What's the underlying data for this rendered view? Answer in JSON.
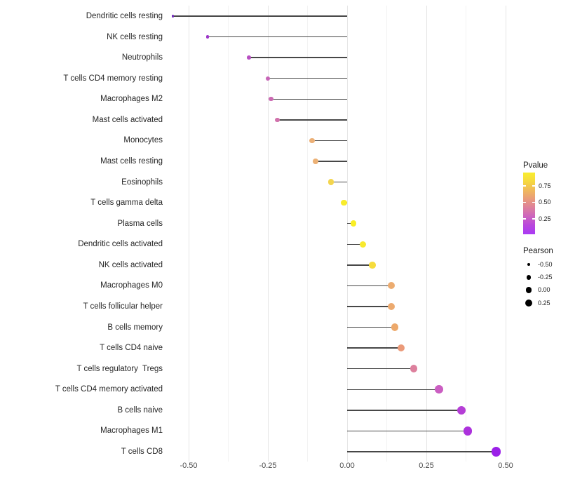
{
  "chart_data": {
    "type": "scatter",
    "subtype": "lollipop",
    "title": "",
    "xlabel": "",
    "ylabel": "",
    "x_ticks": [
      {
        "label": "-0.50",
        "value": -0.5
      },
      {
        "label": "-0.25",
        "value": -0.25
      },
      {
        "label": "0.00",
        "value": 0.0
      },
      {
        "label": "0.25",
        "value": 0.25
      },
      {
        "label": "0.50",
        "value": 0.5
      }
    ],
    "x_minor_gridlines": [
      -0.375,
      -0.125,
      0.125,
      0.375
    ],
    "xlim": [
      -0.585,
      0.53
    ],
    "grid": "vertical-only",
    "legend_position": "right",
    "points": [
      {
        "label": "Dendritic cells resting",
        "pearson": -0.55,
        "pvalue_approx": 0.05,
        "color": "#7129b8"
      },
      {
        "label": "NK cells resting",
        "pearson": -0.44,
        "pvalue_approx": 0.15,
        "color": "#9d36c9"
      },
      {
        "label": "Neutrophils",
        "pearson": -0.31,
        "pvalue_approx": 0.3,
        "color": "#b84fc2"
      },
      {
        "label": "T cells CD4 memory resting",
        "pearson": -0.25,
        "pvalue_approx": 0.38,
        "color": "#c765b7"
      },
      {
        "label": "Macrophages M2",
        "pearson": -0.24,
        "pvalue_approx": 0.4,
        "color": "#cb69b2"
      },
      {
        "label": "Mast cells activated",
        "pearson": -0.22,
        "pvalue_approx": 0.44,
        "color": "#d172ac"
      },
      {
        "label": "Monocytes",
        "pearson": -0.11,
        "pvalue_approx": 0.65,
        "color": "#ecb077"
      },
      {
        "label": "Mast cells resting",
        "pearson": -0.1,
        "pvalue_approx": 0.66,
        "color": "#ecb175"
      },
      {
        "label": "Eosinophils",
        "pearson": -0.05,
        "pvalue_approx": 0.8,
        "color": "#f3d54e"
      },
      {
        "label": "T cells gamma delta",
        "pearson": -0.01,
        "pvalue_approx": 0.9,
        "color": "#f8ec2b"
      },
      {
        "label": "Plasma cells",
        "pearson": 0.02,
        "pvalue_approx": 0.92,
        "color": "#f9ee24"
      },
      {
        "label": "Dendritic cells activated",
        "pearson": 0.05,
        "pvalue_approx": 0.88,
        "color": "#f8e92e"
      },
      {
        "label": "NK cells activated",
        "pearson": 0.08,
        "pvalue_approx": 0.82,
        "color": "#f6dc3c"
      },
      {
        "label": "Macrophages M0",
        "pearson": 0.14,
        "pvalue_approx": 0.66,
        "color": "#ecac70"
      },
      {
        "label": "T cells follicular helper",
        "pearson": 0.14,
        "pvalue_approx": 0.65,
        "color": "#ecaa6f"
      },
      {
        "label": "B cells memory",
        "pearson": 0.15,
        "pvalue_approx": 0.64,
        "color": "#eda96b"
      },
      {
        "label": "T cells CD4 naive",
        "pearson": 0.17,
        "pvalue_approx": 0.58,
        "color": "#eb9a79"
      },
      {
        "label": "T cells regulatory  Tregs",
        "pearson": 0.21,
        "pvalue_approx": 0.45,
        "color": "#dd809d"
      },
      {
        "label": "T cells CD4 memory activated",
        "pearson": 0.29,
        "pvalue_approx": 0.3,
        "color": "#cb5ec2"
      },
      {
        "label": "B cells naive",
        "pearson": 0.36,
        "pvalue_approx": 0.18,
        "color": "#b53ed6"
      },
      {
        "label": "Macrophages M1",
        "pearson": 0.38,
        "pvalue_approx": 0.15,
        "color": "#ac31dc"
      },
      {
        "label": "T cells CD8",
        "pearson": 0.47,
        "pvalue_approx": 0.08,
        "color": "#9b20e8"
      }
    ]
  },
  "legend": {
    "pvalue": {
      "title": "Pvalue",
      "ticks": [
        {
          "label": "0.75",
          "frac_from_top": 0.216
        },
        {
          "label": "0.50",
          "frac_from_top": 0.483
        },
        {
          "label": "0.25",
          "frac_from_top": 0.75
        }
      ],
      "gradient": [
        "#f9ee2e",
        "#f6d93f",
        "#f0b95c",
        "#e99b7b",
        "#dd7f9d",
        "#cc63c0",
        "#b847dd",
        "#aa3bf5"
      ]
    },
    "pearson": {
      "title": "Pearson",
      "items": [
        {
          "label": "-0.50",
          "diameter": 4.0
        },
        {
          "label": "-0.25",
          "diameter": 6.5
        },
        {
          "label": "0.00",
          "diameter": 8.7
        },
        {
          "label": "0.25",
          "diameter": 10.2
        }
      ]
    }
  }
}
